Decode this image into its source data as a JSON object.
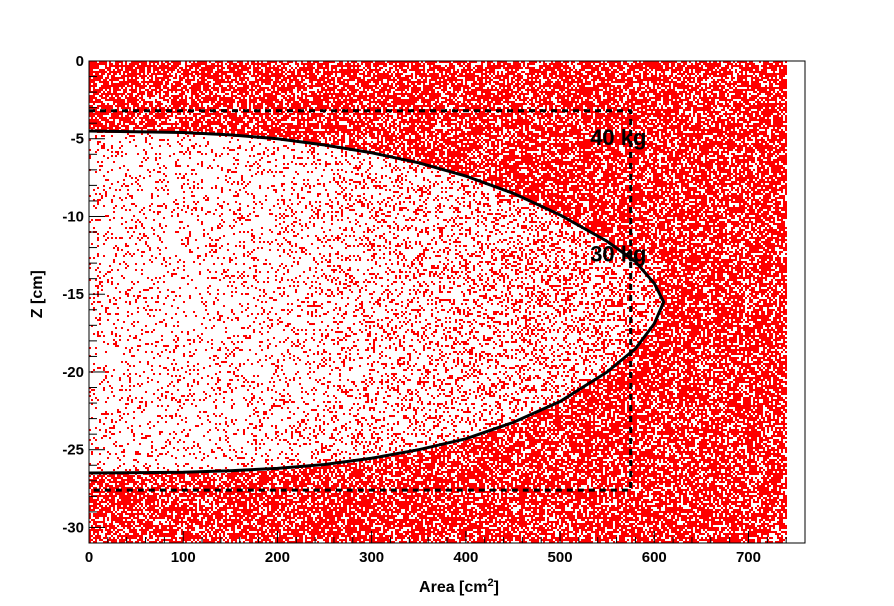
{
  "chart_data": {
    "type": "scatter",
    "title": "",
    "xlabel": "Area [cm",
    "xlabel_sup": "2",
    "xlabel_close": "]",
    "ylabel": "Z [cm]",
    "xlim": [
      0,
      760
    ],
    "ylim": [
      -31,
      0
    ],
    "xticks": [
      0,
      100,
      200,
      300,
      400,
      500,
      600,
      700
    ],
    "yticks": [
      0,
      -5,
      -10,
      -15,
      -20,
      -25,
      -30
    ],
    "xtick_labels": [
      "0",
      "100",
      "200",
      "300",
      "400",
      "500",
      "600",
      "700"
    ],
    "ytick_labels": [
      "0",
      "-5",
      "-10",
      "-15",
      "-20",
      "-25",
      "-30"
    ],
    "grid": false,
    "legend": "none",
    "scatter_fill": {
      "x_range": [
        0,
        740
      ],
      "y_range": [
        -31,
        0
      ],
      "color": "#ff0000",
      "density": "dense outside the inner contour, sparse inside"
    },
    "series": [
      {
        "style": "solid",
        "color": "#000000",
        "points": [
          [
            0,
            -4.5
          ],
          [
            50,
            -4.55
          ],
          [
            100,
            -4.6
          ],
          [
            150,
            -4.75
          ],
          [
            200,
            -5.0
          ],
          [
            250,
            -5.4
          ],
          [
            300,
            -5.9
          ],
          [
            350,
            -6.55
          ],
          [
            400,
            -7.4
          ],
          [
            450,
            -8.5
          ],
          [
            500,
            -9.9
          ],
          [
            550,
            -11.6
          ],
          [
            580,
            -12.9
          ],
          [
            600,
            -14.3
          ],
          [
            610,
            -15.5
          ],
          [
            600,
            -16.9
          ],
          [
            580,
            -18.5
          ],
          [
            550,
            -20.0
          ],
          [
            500,
            -21.9
          ],
          [
            450,
            -23.25
          ],
          [
            400,
            -24.3
          ],
          [
            350,
            -25.0
          ],
          [
            300,
            -25.55
          ],
          [
            250,
            -25.95
          ],
          [
            200,
            -26.2
          ],
          [
            150,
            -26.35
          ],
          [
            100,
            -26.45
          ],
          [
            0,
            -26.5
          ]
        ]
      },
      {
        "style": "dashed",
        "color": "#000000",
        "points": [
          [
            0,
            -3.2
          ],
          [
            575,
            -3.2
          ],
          [
            575,
            -27.6
          ],
          [
            0,
            -27.6
          ]
        ]
      }
    ],
    "annotations": [
      {
        "text": "40 kg",
        "x": 532,
        "y": -5.4
      },
      {
        "text": "30 kg",
        "x": 532,
        "y": -12.9
      }
    ]
  }
}
